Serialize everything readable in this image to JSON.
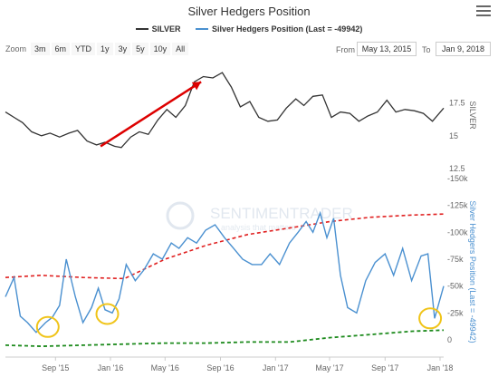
{
  "header": {
    "title": "Silver Hedgers Position"
  },
  "legend": [
    {
      "label": "SILVER",
      "color": "#333333"
    },
    {
      "label": "Silver Hedgers Position (Last = -49942)",
      "color": "#4a90d0"
    }
  ],
  "toolbar": {
    "zoom_label": "Zoom",
    "zoom_buttons": [
      "3m",
      "6m",
      "YTD",
      "1y",
      "3y",
      "5y",
      "10y",
      "All"
    ],
    "from_label": "From",
    "from_value": "May 13, 2015",
    "to_label": "To",
    "to_value": "Jan 9, 2018"
  },
  "watermark": {
    "brand": "SENTIMENTRADER",
    "tagline": "analysis that matters"
  },
  "colors": {
    "silver_line": "#333333",
    "hedgers_line": "#4a90d0",
    "upper_band": "#e02020",
    "lower_band": "#1c8a1c",
    "trend_arrow": "#dd0000",
    "highlight_circle": "#f0c419",
    "axis_text": "#666666",
    "hedgers_axis_text": "#4a90d0"
  },
  "chart_data": {
    "type": "line",
    "x_ticks": [
      "Sep '15",
      "Jan '16",
      "May '16",
      "Sep '16",
      "Jan '17",
      "May '17",
      "Sep '17",
      "Jan '18"
    ],
    "x_range": [
      "2015-05-13",
      "2018-01-09"
    ],
    "upper_panel": {
      "axis_title": "SILVER",
      "ylim": [
        12.5,
        20.5
      ],
      "y_ticks": [
        "12.5",
        "15",
        "17.5"
      ],
      "series": [
        {
          "name": "SILVER",
          "x": [
            "2015-05-13",
            "2015-06-01",
            "2015-06-20",
            "2015-07-10",
            "2015-08-01",
            "2015-08-20",
            "2015-09-10",
            "2015-10-01",
            "2015-10-20",
            "2015-11-10",
            "2015-12-01",
            "2015-12-20",
            "2016-01-10",
            "2016-01-25",
            "2016-02-15",
            "2016-03-05",
            "2016-03-25",
            "2016-04-15",
            "2016-05-05",
            "2016-05-25",
            "2016-06-15",
            "2016-07-05",
            "2016-07-25",
            "2016-08-15",
            "2016-09-05",
            "2016-09-25",
            "2016-10-15",
            "2016-11-05",
            "2016-11-25",
            "2016-12-15",
            "2017-01-05",
            "2017-01-25",
            "2017-02-15",
            "2017-03-05",
            "2017-03-25",
            "2017-04-15",
            "2017-05-05",
            "2017-05-25",
            "2017-06-15",
            "2017-07-05",
            "2017-07-25",
            "2017-08-15",
            "2017-09-05",
            "2017-09-25",
            "2017-10-15",
            "2017-11-05",
            "2017-11-25",
            "2017-12-15",
            "2018-01-09"
          ],
          "y": [
            16.8,
            16.4,
            16.0,
            15.3,
            15.0,
            15.2,
            14.9,
            15.2,
            15.4,
            14.6,
            14.3,
            14.5,
            14.2,
            14.1,
            14.9,
            15.3,
            15.1,
            16.2,
            17.0,
            16.4,
            17.3,
            19.1,
            19.5,
            19.4,
            19.8,
            18.7,
            17.2,
            17.6,
            16.4,
            16.1,
            16.2,
            17.1,
            17.8,
            17.3,
            18.0,
            18.1,
            16.4,
            16.8,
            16.7,
            16.1,
            16.5,
            16.8,
            17.7,
            16.8,
            17.0,
            16.9,
            16.7,
            16.1,
            17.1
          ]
        }
      ],
      "annotation": {
        "type": "trend_arrow",
        "from": {
          "x": "2015-12-10",
          "y": 14.2
        },
        "to": {
          "x": "2016-07-20",
          "y": 19.1
        }
      }
    },
    "lower_panel": {
      "axis_title": "Silver Hedgers Position (Last = -49942)",
      "ylim": [
        -150000,
        0
      ],
      "inverted": true,
      "y_ticks": [
        "-150k",
        "-125k",
        "-100k",
        "-75k",
        "-50k",
        "-25k",
        "0"
      ],
      "series": [
        {
          "name": "Silver Hedgers Position (Last = -49942)",
          "x": [
            "2015-05-13",
            "2015-06-01",
            "2015-06-15",
            "2015-07-01",
            "2015-07-20",
            "2015-08-10",
            "2015-08-25",
            "2015-09-10",
            "2015-09-25",
            "2015-10-15",
            "2015-11-01",
            "2015-11-20",
            "2015-12-05",
            "2015-12-20",
            "2016-01-05",
            "2016-01-20",
            "2016-02-05",
            "2016-02-25",
            "2016-03-15",
            "2016-04-05",
            "2016-04-25",
            "2016-05-15",
            "2016-06-01",
            "2016-06-20",
            "2016-07-10",
            "2016-07-30",
            "2016-08-20",
            "2016-09-10",
            "2016-09-30",
            "2016-10-20",
            "2016-11-10",
            "2016-12-01",
            "2016-12-20",
            "2017-01-10",
            "2017-02-01",
            "2017-02-20",
            "2017-03-10",
            "2017-03-25",
            "2017-04-10",
            "2017-04-25",
            "2017-05-10",
            "2017-05-25",
            "2017-06-10",
            "2017-06-30",
            "2017-07-20",
            "2017-08-10",
            "2017-09-01",
            "2017-09-20",
            "2017-10-10",
            "2017-10-30",
            "2017-11-20",
            "2017-12-05",
            "2017-12-20",
            "2018-01-09"
          ],
          "y": [
            -40000,
            -58000,
            -22000,
            -16000,
            -7000,
            -16000,
            -21000,
            -32000,
            -75000,
            -40000,
            -16000,
            -30000,
            -48000,
            -28000,
            -25000,
            -38000,
            -70000,
            -55000,
            -65000,
            -80000,
            -75000,
            -90000,
            -85000,
            -95000,
            -90000,
            -102000,
            -107000,
            -95000,
            -85000,
            -75000,
            -70000,
            -70000,
            -80000,
            -70000,
            -90000,
            -100000,
            -110000,
            -100000,
            -118000,
            -95000,
            -113000,
            -60000,
            -30000,
            -25000,
            -55000,
            -72000,
            -80000,
            -60000,
            -85000,
            -55000,
            -78000,
            -80000,
            -20000,
            -49942
          ]
        },
        {
          "name": "upper band",
          "x": [
            "2015-05-13",
            "2015-08-01",
            "2015-11-01",
            "2016-02-01",
            "2016-05-01",
            "2016-08-01",
            "2016-11-01",
            "2017-02-01",
            "2017-05-01",
            "2017-08-01",
            "2017-11-01",
            "2018-01-09"
          ],
          "y": [
            -58000,
            -60000,
            -58000,
            -57000,
            -75000,
            -88000,
            -98000,
            -104000,
            -110000,
            -114000,
            -116000,
            -117000
          ]
        },
        {
          "name": "lower band",
          "x": [
            "2015-05-13",
            "2015-08-01",
            "2015-11-01",
            "2016-02-01",
            "2016-05-01",
            "2016-08-01",
            "2016-11-01",
            "2017-02-01",
            "2017-05-01",
            "2017-08-01",
            "2017-11-01",
            "2018-01-09"
          ],
          "y": [
            5000,
            6000,
            5000,
            4000,
            3000,
            3000,
            2000,
            2000,
            -2000,
            -5000,
            -8000,
            -9000
          ]
        }
      ],
      "highlights": [
        {
          "x": "2015-08-15",
          "y": -12000
        },
        {
          "x": "2015-12-25",
          "y": -24000
        },
        {
          "x": "2017-12-10",
          "y": -20000
        }
      ]
    }
  }
}
